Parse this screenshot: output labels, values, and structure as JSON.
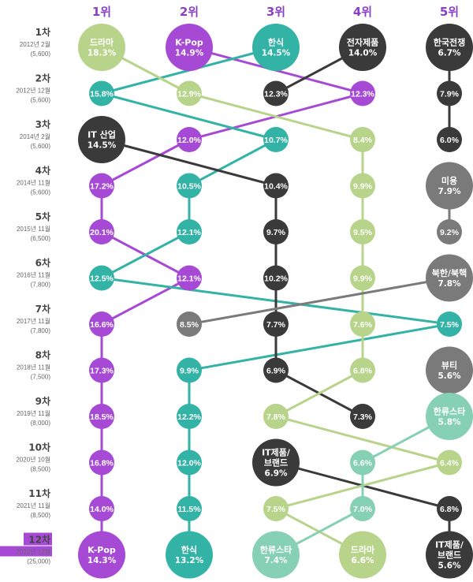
{
  "colors": {
    "purple": "#a64ad6",
    "teal": "#33b3a6",
    "dark": "#3a3a3a",
    "green": "#b8d48b",
    "mint": "#86d0b4",
    "gray": "#7a7a7a",
    "rank_header": "#8a3fc7"
  },
  "rank_headers": [
    "1위",
    "2위",
    "3위",
    "4위",
    "5위"
  ],
  "rounds": [
    {
      "label": "1차",
      "date": "2012년 2월",
      "n": "(5,600)"
    },
    {
      "label": "2차",
      "date": "2012년 12월",
      "n": "(5,600)"
    },
    {
      "label": "3차",
      "date": "2014년 2월",
      "n": "(5,600)"
    },
    {
      "label": "4차",
      "date": "2014년 11월",
      "n": "(5,600)"
    },
    {
      "label": "5차",
      "date": "2015년 11월",
      "n": "(6,500)"
    },
    {
      "label": "6차",
      "date": "2016년 11월",
      "n": "(7,800)"
    },
    {
      "label": "7차",
      "date": "2017년 11월",
      "n": "(7,800)"
    },
    {
      "label": "8차",
      "date": "2018년 11월",
      "n": "(7,500)"
    },
    {
      "label": "9차",
      "date": "2019년 11월",
      "n": "(8,000)"
    },
    {
      "label": "10차",
      "date": "2020년 10월",
      "n": "(8,500)"
    },
    {
      "label": "11차",
      "date": "2021년 11월",
      "n": "(8,500)"
    },
    {
      "label": "12차",
      "date": "2022년 12월",
      "n": "(25,000)"
    }
  ],
  "chart_data": {
    "type": "rank-bump",
    "columns": [
      "1위",
      "2위",
      "3위",
      "4위",
      "5위"
    ],
    "rounds": [
      "1차",
      "2차",
      "3차",
      "4차",
      "5차",
      "6차",
      "7차",
      "8차",
      "9차",
      "10차",
      "11차",
      "12차"
    ],
    "series": [
      {
        "name": "K-Pop",
        "color": "purple",
        "points": [
          {
            "round": 1,
            "rank": 2,
            "value": 14.9
          },
          {
            "round": 2,
            "rank": 4,
            "value": 12.3
          },
          {
            "round": 3,
            "rank": 2,
            "value": 12.0
          },
          {
            "round": 4,
            "rank": 1,
            "value": 17.2
          },
          {
            "round": 5,
            "rank": 1,
            "value": 20.1
          },
          {
            "round": 6,
            "rank": 2,
            "value": 12.1
          },
          {
            "round": 7,
            "rank": 1,
            "value": 16.6
          },
          {
            "round": 8,
            "rank": 1,
            "value": 17.3
          },
          {
            "round": 9,
            "rank": 1,
            "value": 18.5
          },
          {
            "round": 10,
            "rank": 1,
            "value": 16.8
          },
          {
            "round": 11,
            "rank": 1,
            "value": 14.0
          },
          {
            "round": 12,
            "rank": 1,
            "value": 14.3
          }
        ]
      },
      {
        "name": "한식",
        "color": "teal",
        "points": [
          {
            "round": 1,
            "rank": 3,
            "value": 14.5
          },
          {
            "round": 2,
            "rank": 1,
            "value": 15.8
          },
          {
            "round": 3,
            "rank": 3,
            "value": 10.7
          },
          {
            "round": 4,
            "rank": 2,
            "value": 10.5
          },
          {
            "round": 5,
            "rank": 2,
            "value": 12.1
          },
          {
            "round": 6,
            "rank": 1,
            "value": 12.5
          },
          {
            "round": 7,
            "rank": 5,
            "value": 7.5
          },
          {
            "round": 8,
            "rank": 2,
            "value": 9.9
          },
          {
            "round": 9,
            "rank": 2,
            "value": 12.2
          },
          {
            "round": 10,
            "rank": 2,
            "value": 12.0
          },
          {
            "round": 11,
            "rank": 2,
            "value": 11.5
          },
          {
            "round": 12,
            "rank": 2,
            "value": 13.2
          }
        ]
      },
      {
        "name": "전자제품",
        "color": "dark",
        "points": [
          {
            "round": 1,
            "rank": 4,
            "value": 14.0
          },
          {
            "round": 2,
            "rank": 3,
            "value": 12.3
          }
        ]
      },
      {
        "name": "IT 산업",
        "color": "dark",
        "points": [
          {
            "round": 3,
            "rank": 1,
            "value": 14.5
          },
          {
            "round": 4,
            "rank": 3,
            "value": 10.4
          },
          {
            "round": 5,
            "rank": 3,
            "value": 9.7
          },
          {
            "round": 6,
            "rank": 3,
            "value": 10.2
          },
          {
            "round": 7,
            "rank": 3,
            "value": 7.7
          },
          {
            "round": 8,
            "rank": 3,
            "value": 6.9
          },
          {
            "round": 9,
            "rank": 4,
            "value": 7.3
          }
        ]
      },
      {
        "name": "IT제품/브랜드",
        "color": "dark",
        "points": [
          {
            "round": 10,
            "rank": 3,
            "value": 6.9
          },
          {
            "round": 11,
            "rank": 5,
            "value": 6.8
          },
          {
            "round": 12,
            "rank": 5,
            "value": 5.6
          }
        ]
      },
      {
        "name": "드라마",
        "color": "green",
        "points": [
          {
            "round": 1,
            "rank": 1,
            "value": 18.3
          },
          {
            "round": 2,
            "rank": 2,
            "value": 12.9
          },
          {
            "round": 3,
            "rank": 4,
            "value": 8.4
          },
          {
            "round": 4,
            "rank": 4,
            "value": 9.9
          },
          {
            "round": 5,
            "rank": 4,
            "value": 9.5
          },
          {
            "round": 6,
            "rank": 4,
            "value": 9.9
          },
          {
            "round": 7,
            "rank": 4,
            "value": 7.6
          },
          {
            "round": 8,
            "rank": 4,
            "value": 6.8
          },
          {
            "round": 9,
            "rank": 3,
            "value": 7.8
          },
          {
            "round": 10,
            "rank": 5,
            "value": 6.4
          },
          {
            "round": 11,
            "rank": 3,
            "value": 7.5
          },
          {
            "round": 12,
            "rank": 4,
            "value": 6.6
          }
        ]
      },
      {
        "name": "한국전쟁",
        "color": "dark",
        "points": [
          {
            "round": 1,
            "rank": 5,
            "value": 6.7
          },
          {
            "round": 2,
            "rank": 5,
            "value": 7.9
          },
          {
            "round": 3,
            "rank": 5,
            "value": 6.0
          }
        ]
      },
      {
        "name": "미용",
        "color": "gray",
        "points": [
          {
            "round": 4,
            "rank": 5,
            "value": 7.9
          },
          {
            "round": 5,
            "rank": 5,
            "value": 9.2
          }
        ]
      },
      {
        "name": "북한/북핵",
        "color": "gray",
        "points": [
          {
            "round": 6,
            "rank": 5,
            "value": 7.8
          },
          {
            "round": 7,
            "rank": 2,
            "value": 8.5
          }
        ]
      },
      {
        "name": "뷰티",
        "color": "gray",
        "points": [
          {
            "round": 8,
            "rank": 5,
            "value": 5.6
          }
        ]
      },
      {
        "name": "한류스타",
        "color": "mint",
        "points": [
          {
            "round": 9,
            "rank": 5,
            "value": 5.8
          },
          {
            "round": 10,
            "rank": 4,
            "value": 6.6
          },
          {
            "round": 11,
            "rank": 4,
            "value": 7.0
          },
          {
            "round": 12,
            "rank": 3,
            "value": 7.4
          }
        ]
      }
    ]
  }
}
